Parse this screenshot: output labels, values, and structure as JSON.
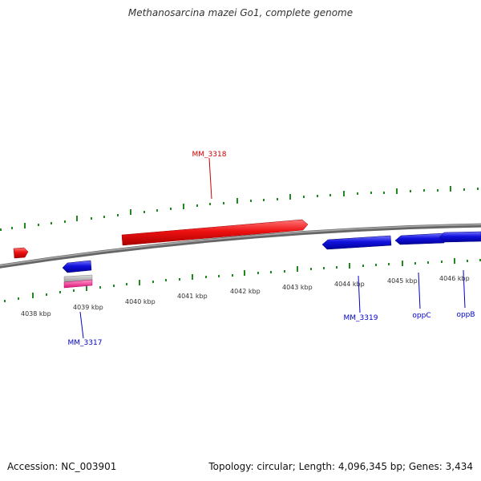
{
  "header": {
    "title": "Methanosarcina mazei Go1, complete genome"
  },
  "scale_labels": [
    "4038 kbp",
    "4039 kbp",
    "4040 kbp",
    "4041 kbp",
    "4042 kbp",
    "4043 kbp",
    "4044 kbp",
    "4045 kbp",
    "4046 kbp"
  ],
  "genes": {
    "mm3318": "MM_3318",
    "mm3317": "MM_3317",
    "mm3319": "MM_3319",
    "oppC": "oppC",
    "oppB": "oppB"
  },
  "colors": {
    "forward_gene": "#ee1111",
    "reverse_gene": "#1111dd",
    "backbone": "#888888",
    "ticks": "#228822",
    "misc_pink": "#ee2288",
    "misc_gray": "#aaaaaa"
  },
  "footer": {
    "accession": "Accession: NC_003901",
    "summary": "Topology: circular; Length: 4,096,345 bp; Genes: 3,434"
  }
}
